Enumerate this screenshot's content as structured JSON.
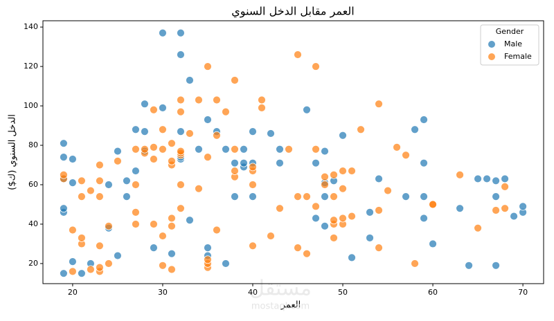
{
  "chart_data": {
    "type": "scatter",
    "title": "العمر مقابل الدخل السنوي",
    "x_label": "العمر",
    "y_label": "الدخل السنوي (ك$)",
    "legend_title": "Gender",
    "legend_position": "upper right",
    "watermark": "مستقل",
    "watermark_sub": "mostaql.com",
    "xlim": [
      16.7,
      72.3
    ],
    "ylim": [
      9.8,
      143.2
    ],
    "xticks": [
      20,
      30,
      40,
      50,
      60,
      70
    ],
    "yticks": [
      20,
      40,
      60,
      80,
      100,
      120,
      140
    ],
    "series": [
      {
        "name": "Male",
        "color": "#1f77b4",
        "x": [
          19,
          19,
          19,
          19,
          19,
          19,
          20,
          20,
          20,
          21,
          22,
          24,
          24,
          25,
          25,
          26,
          26,
          27,
          27,
          28,
          28,
          28,
          29,
          30,
          30,
          31,
          32,
          32,
          32,
          32,
          32,
          33,
          33,
          34,
          35,
          35,
          35,
          36,
          37,
          37,
          38,
          38,
          39,
          39,
          39,
          40,
          40,
          40,
          42,
          43,
          43,
          46,
          47,
          47,
          48,
          48,
          48,
          48,
          49,
          50,
          51,
          53,
          53,
          54,
          57,
          58,
          59,
          59,
          59,
          59,
          60,
          63,
          64,
          65,
          66,
          67,
          67,
          67,
          68,
          69,
          70,
          70
        ],
        "values": [
          15,
          46,
          48,
          63,
          74,
          81,
          21,
          61,
          73,
          15,
          20,
          38,
          60,
          24,
          77,
          54,
          62,
          67,
          88,
          77,
          87,
          101,
          28,
          99,
          137,
          25,
          73,
          74,
          87,
          126,
          137,
          42,
          113,
          78,
          24,
          28,
          93,
          87,
          20,
          78,
          54,
          71,
          69,
          71,
          78,
          54,
          71,
          87,
          86,
          71,
          78,
          98,
          43,
          71,
          39,
          54,
          61,
          77,
          62,
          85,
          23,
          33,
          46,
          63,
          54,
          88,
          43,
          54,
          71,
          93,
          30,
          48,
          19,
          63,
          63,
          19,
          54,
          62,
          63,
          44,
          46,
          49
        ]
      },
      {
        "name": "Female",
        "color": "#ff7f0e",
        "x": [
          19,
          19,
          20,
          20,
          21,
          21,
          21,
          21,
          22,
          22,
          23,
          23,
          23,
          23,
          23,
          23,
          24,
          24,
          25,
          27,
          27,
          27,
          27,
          28,
          28,
          29,
          29,
          29,
          29,
          30,
          30,
          30,
          30,
          31,
          31,
          31,
          31,
          31,
          31,
          32,
          32,
          32,
          32,
          32,
          32,
          32,
          33,
          34,
          34,
          35,
          35,
          35,
          35,
          35,
          36,
          36,
          36,
          37,
          38,
          38,
          38,
          38,
          40,
          40,
          40,
          40,
          41,
          41,
          42,
          43,
          44,
          45,
          45,
          45,
          46,
          46,
          47,
          47,
          47,
          48,
          48,
          49,
          49,
          49,
          49,
          49,
          50,
          50,
          50,
          50,
          51,
          51,
          52,
          54,
          54,
          54,
          55,
          56,
          57,
          58,
          60,
          60,
          63,
          65,
          67,
          68,
          68
        ],
        "values": [
          63,
          65,
          16,
          37,
          30,
          33,
          54,
          62,
          17,
          57,
          16,
          18,
          29,
          54,
          62,
          70,
          20,
          39,
          72,
          40,
          46,
          60,
          78,
          76,
          78,
          40,
          73,
          79,
          98,
          19,
          34,
          78,
          88,
          17,
          39,
          43,
          70,
          72,
          81,
          48,
          60,
          75,
          76,
          77,
          97,
          103,
          86,
          58,
          103,
          18,
          20,
          22,
          74,
          120,
          37,
          85,
          103,
          97,
          64,
          67,
          78,
          113,
          29,
          60,
          67,
          69,
          99,
          103,
          34,
          48,
          78,
          28,
          54,
          126,
          25,
          54,
          49,
          78,
          120,
          60,
          64,
          33,
          40,
          42,
          54,
          65,
          40,
          43,
          58,
          67,
          44,
          67,
          88,
          28,
          47,
          101,
          57,
          79,
          75,
          20,
          50,
          50,
          65,
          38,
          47,
          48,
          59
        ]
      }
    ]
  }
}
